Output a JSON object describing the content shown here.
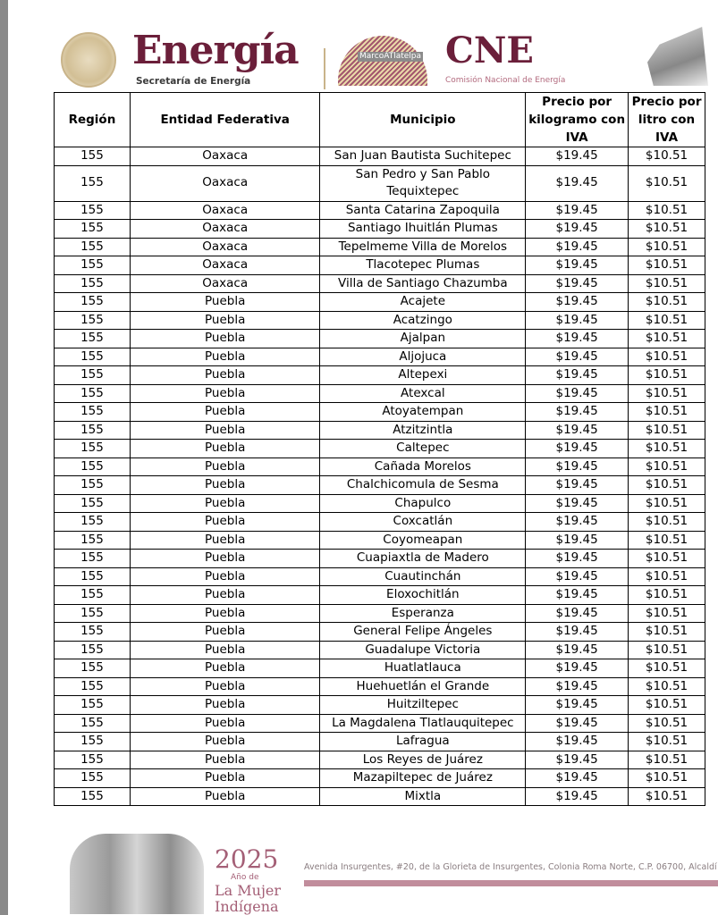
{
  "header": {
    "title": "Energía",
    "subtitle": "Secretaría de Energía",
    "cne": "CNE",
    "cne_subtitle": "Comisión Nacional de Energía",
    "watermark": "MarcoATlatelpa"
  },
  "table": {
    "columns": [
      "Región",
      "Entidad Federativa",
      "Municipio",
      "Precio por kilogramo con IVA",
      "Precio por litro con IVA"
    ],
    "rows": [
      [
        "155",
        "Oaxaca",
        "San Juan Bautista Suchitepec",
        "$19.45",
        "$10.51"
      ],
      [
        "155",
        "Oaxaca",
        "San Pedro y San Pablo Tequixtepec",
        "$19.45",
        "$10.51"
      ],
      [
        "155",
        "Oaxaca",
        "Santa Catarina Zapoquila",
        "$19.45",
        "$10.51"
      ],
      [
        "155",
        "Oaxaca",
        "Santiago Ihuitlán Plumas",
        "$19.45",
        "$10.51"
      ],
      [
        "155",
        "Oaxaca",
        "Tepelmeme Villa de Morelos",
        "$19.45",
        "$10.51"
      ],
      [
        "155",
        "Oaxaca",
        "Tlacotepec Plumas",
        "$19.45",
        "$10.51"
      ],
      [
        "155",
        "Oaxaca",
        "Villa de Santiago Chazumba",
        "$19.45",
        "$10.51"
      ],
      [
        "155",
        "Puebla",
        "Acajete",
        "$19.45",
        "$10.51"
      ],
      [
        "155",
        "Puebla",
        "Acatzingo",
        "$19.45",
        "$10.51"
      ],
      [
        "155",
        "Puebla",
        "Ajalpan",
        "$19.45",
        "$10.51"
      ],
      [
        "155",
        "Puebla",
        "Aljojuca",
        "$19.45",
        "$10.51"
      ],
      [
        "155",
        "Puebla",
        "Altepexi",
        "$19.45",
        "$10.51"
      ],
      [
        "155",
        "Puebla",
        "Atexcal",
        "$19.45",
        "$10.51"
      ],
      [
        "155",
        "Puebla",
        "Atoyatempan",
        "$19.45",
        "$10.51"
      ],
      [
        "155",
        "Puebla",
        "Atzitzintla",
        "$19.45",
        "$10.51"
      ],
      [
        "155",
        "Puebla",
        "Caltepec",
        "$19.45",
        "$10.51"
      ],
      [
        "155",
        "Puebla",
        "Cañada Morelos",
        "$19.45",
        "$10.51"
      ],
      [
        "155",
        "Puebla",
        "Chalchicomula de Sesma",
        "$19.45",
        "$10.51"
      ],
      [
        "155",
        "Puebla",
        "Chapulco",
        "$19.45",
        "$10.51"
      ],
      [
        "155",
        "Puebla",
        "Coxcatlán",
        "$19.45",
        "$10.51"
      ],
      [
        "155",
        "Puebla",
        "Coyomeapan",
        "$19.45",
        "$10.51"
      ],
      [
        "155",
        "Puebla",
        "Cuapiaxtla de Madero",
        "$19.45",
        "$10.51"
      ],
      [
        "155",
        "Puebla",
        "Cuautinchán",
        "$19.45",
        "$10.51"
      ],
      [
        "155",
        "Puebla",
        "Eloxochitlán",
        "$19.45",
        "$10.51"
      ],
      [
        "155",
        "Puebla",
        "Esperanza",
        "$19.45",
        "$10.51"
      ],
      [
        "155",
        "Puebla",
        "General Felipe Ángeles",
        "$19.45",
        "$10.51"
      ],
      [
        "155",
        "Puebla",
        "Guadalupe Victoria",
        "$19.45",
        "$10.51"
      ],
      [
        "155",
        "Puebla",
        "Huatlatlauca",
        "$19.45",
        "$10.51"
      ],
      [
        "155",
        "Puebla",
        "Huehuetlán el Grande",
        "$19.45",
        "$10.51"
      ],
      [
        "155",
        "Puebla",
        "Huitziltepec",
        "$19.45",
        "$10.51"
      ],
      [
        "155",
        "Puebla",
        "La Magdalena Tlatlauquitepec",
        "$19.45",
        "$10.51"
      ],
      [
        "155",
        "Puebla",
        "Lafragua",
        "$19.45",
        "$10.51"
      ],
      [
        "155",
        "Puebla",
        "Los Reyes de Juárez",
        "$19.45",
        "$10.51"
      ],
      [
        "155",
        "Puebla",
        "Mazapiltepec de Juárez",
        "$19.45",
        "$10.51"
      ],
      [
        "155",
        "Puebla",
        "Mixtla",
        "$19.45",
        "$10.51"
      ]
    ]
  },
  "footer": {
    "year": "2025",
    "ano_de": "Año de",
    "mujer": "La Mujer",
    "indigena": "Indígena",
    "address": "Avenida Insurgentes, #20, de la Glorieta de Insurgentes, Colonia Roma Norte, C.P. 06700, Alcaldí"
  },
  "colors": {
    "brand": "#6b1f3a",
    "accent": "#a45f76"
  }
}
